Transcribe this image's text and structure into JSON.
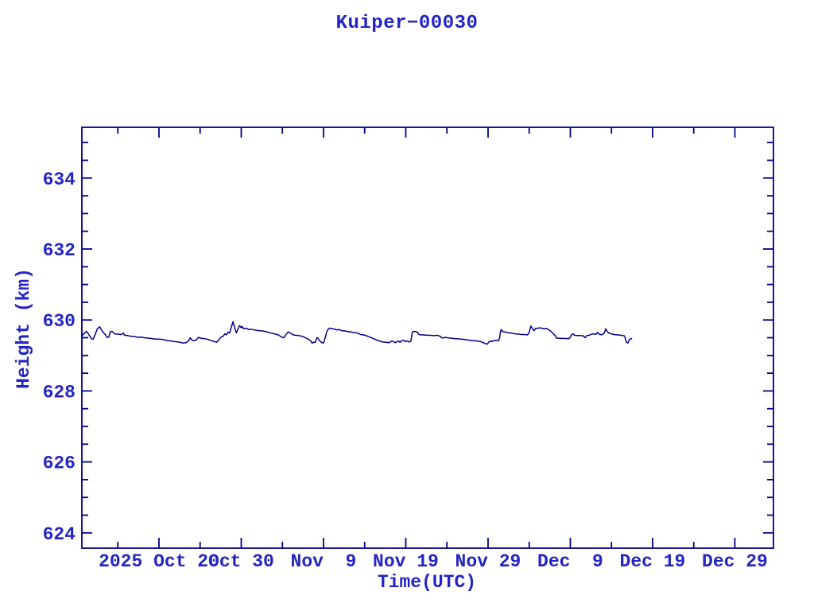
{
  "colors": {
    "background": "#ffffff",
    "axis": "#00008b",
    "line": "#00008b",
    "text": "#2424c4"
  },
  "chart_data": {
    "type": "line",
    "title": "Kuiper−00030",
    "xlabel": "Time(UTC)",
    "ylabel": "Height (km)",
    "grid": false,
    "legend": null,
    "x_axis": {
      "unit": "days relative to 2025 Oct 20 00:00 UTC",
      "range_days": [
        -9.37,
        74.69
      ],
      "major_ticks": [
        {
          "day": 0,
          "label": "2025 Oct 20"
        },
        {
          "day": 10,
          "label": "Oct 30"
        },
        {
          "day": 20,
          "label": "Nov  9"
        },
        {
          "day": 30,
          "label": "Nov 19"
        },
        {
          "day": 40,
          "label": "Nov 29"
        },
        {
          "day": 50,
          "label": "Dec  9"
        },
        {
          "day": 60,
          "label": "Dec 19"
        },
        {
          "day": 70,
          "label": "Dec 29"
        }
      ],
      "minor_tick_days": [
        -5,
        5,
        15,
        25,
        35,
        45,
        55,
        65
      ]
    },
    "y_axis": {
      "unit": "km",
      "range_km": [
        623.57,
        635.43
      ],
      "major_ticks": [
        624,
        626,
        628,
        630,
        632,
        634
      ],
      "minor_step_km": 0.5
    },
    "series": [
      {
        "name": "height_km",
        "points": [
          [
            -9.4,
            629.54
          ],
          [
            -9.1,
            629.62
          ],
          [
            -8.8,
            629.68
          ],
          [
            -8.5,
            629.58
          ],
          [
            -8.2,
            629.47
          ],
          [
            -8.0,
            629.46
          ],
          [
            -7.8,
            629.56
          ],
          [
            -7.5,
            629.75
          ],
          [
            -7.2,
            629.81
          ],
          [
            -7.1,
            629.76
          ],
          [
            -6.8,
            629.66
          ],
          [
            -6.5,
            629.58
          ],
          [
            -6.3,
            629.51
          ],
          [
            -6.1,
            629.52
          ],
          [
            -5.9,
            629.67
          ],
          [
            -5.7,
            629.68
          ],
          [
            -5.4,
            629.61
          ],
          [
            -5.0,
            629.6
          ],
          [
            -4.6,
            629.59
          ],
          [
            -4.3,
            629.63
          ],
          [
            -4.2,
            629.57
          ],
          [
            -3.8,
            629.56
          ],
          [
            -3.4,
            629.54
          ],
          [
            -3.0,
            629.54
          ],
          [
            -2.6,
            629.51
          ],
          [
            -2.2,
            629.52
          ],
          [
            -1.8,
            629.5
          ],
          [
            -1.4,
            629.49
          ],
          [
            -1.0,
            629.48
          ],
          [
            -0.5,
            629.46
          ],
          [
            0.0,
            629.46
          ],
          [
            0.5,
            629.45
          ],
          [
            1.0,
            629.42
          ],
          [
            1.4,
            629.41
          ],
          [
            1.9,
            629.39
          ],
          [
            2.4,
            629.38
          ],
          [
            2.9,
            629.35
          ],
          [
            3.3,
            629.36
          ],
          [
            3.6,
            629.41
          ],
          [
            3.8,
            629.5
          ],
          [
            4.0,
            629.43
          ],
          [
            4.3,
            629.42
          ],
          [
            4.5,
            629.43
          ],
          [
            4.8,
            629.51
          ],
          [
            5.2,
            629.48
          ],
          [
            5.6,
            629.47
          ],
          [
            6.0,
            629.45
          ],
          [
            6.4,
            629.41
          ],
          [
            6.8,
            629.39
          ],
          [
            7.0,
            629.37
          ],
          [
            7.2,
            629.42
          ],
          [
            7.5,
            629.51
          ],
          [
            7.8,
            629.54
          ],
          [
            8.0,
            629.61
          ],
          [
            8.2,
            629.58
          ],
          [
            8.4,
            629.66
          ],
          [
            8.6,
            629.63
          ],
          [
            8.8,
            629.8
          ],
          [
            9.0,
            629.95
          ],
          [
            9.2,
            629.78
          ],
          [
            9.4,
            629.64
          ],
          [
            9.6,
            629.74
          ],
          [
            9.8,
            629.84
          ],
          [
            10.0,
            629.78
          ],
          [
            10.1,
            629.82
          ],
          [
            10.3,
            629.75
          ],
          [
            10.6,
            629.77
          ],
          [
            10.9,
            629.73
          ],
          [
            11.2,
            629.74
          ],
          [
            11.6,
            629.72
          ],
          [
            12.1,
            629.7
          ],
          [
            12.6,
            629.69
          ],
          [
            13.0,
            629.67
          ],
          [
            13.5,
            629.64
          ],
          [
            14.0,
            629.61
          ],
          [
            14.5,
            629.58
          ],
          [
            14.9,
            629.52
          ],
          [
            15.2,
            629.5
          ],
          [
            15.5,
            629.61
          ],
          [
            15.7,
            629.66
          ],
          [
            16.0,
            629.63
          ],
          [
            16.3,
            629.58
          ],
          [
            16.6,
            629.57
          ],
          [
            17.0,
            629.56
          ],
          [
            17.4,
            629.54
          ],
          [
            17.8,
            629.5
          ],
          [
            18.2,
            629.45
          ],
          [
            18.5,
            629.4
          ],
          [
            18.6,
            629.35
          ],
          [
            18.8,
            629.37
          ],
          [
            19.0,
            629.37
          ],
          [
            19.2,
            629.5
          ],
          [
            19.3,
            629.49
          ],
          [
            19.5,
            629.42
          ],
          [
            19.8,
            629.36
          ],
          [
            20.0,
            629.35
          ],
          [
            20.2,
            629.49
          ],
          [
            20.4,
            629.67
          ],
          [
            20.6,
            629.75
          ],
          [
            20.8,
            629.77
          ],
          [
            21.1,
            629.75
          ],
          [
            21.4,
            629.74
          ],
          [
            21.6,
            629.72
          ],
          [
            21.9,
            629.73
          ],
          [
            22.2,
            629.7
          ],
          [
            22.6,
            629.69
          ],
          [
            23.0,
            629.67
          ],
          [
            23.4,
            629.66
          ],
          [
            23.8,
            629.64
          ],
          [
            24.2,
            629.63
          ],
          [
            24.5,
            629.59
          ],
          [
            24.9,
            629.58
          ],
          [
            25.3,
            629.55
          ],
          [
            25.7,
            629.51
          ],
          [
            26.1,
            629.47
          ],
          [
            26.5,
            629.43
          ],
          [
            26.9,
            629.4
          ],
          [
            27.2,
            629.38
          ],
          [
            27.6,
            629.37
          ],
          [
            28.0,
            629.36
          ],
          [
            28.3,
            629.41
          ],
          [
            28.5,
            629.39
          ],
          [
            28.7,
            629.36
          ],
          [
            28.9,
            629.38
          ],
          [
            29.1,
            629.41
          ],
          [
            29.3,
            629.37
          ],
          [
            29.5,
            629.42
          ],
          [
            29.7,
            629.43
          ],
          [
            29.9,
            629.41
          ],
          [
            30.0,
            629.39
          ],
          [
            30.2,
            629.41
          ],
          [
            30.4,
            629.38
          ],
          [
            30.6,
            629.4
          ],
          [
            30.7,
            629.51
          ],
          [
            30.8,
            629.66
          ],
          [
            31.0,
            629.68
          ],
          [
            31.2,
            629.67
          ],
          [
            31.4,
            629.66
          ],
          [
            31.6,
            629.59
          ],
          [
            31.8,
            629.58
          ],
          [
            32.1,
            629.58
          ],
          [
            32.5,
            629.57
          ],
          [
            32.9,
            629.57
          ],
          [
            33.2,
            629.56
          ],
          [
            33.6,
            629.56
          ],
          [
            33.8,
            629.57
          ],
          [
            34.2,
            629.54
          ],
          [
            34.4,
            629.49
          ],
          [
            34.8,
            629.51
          ],
          [
            35.3,
            629.49
          ],
          [
            35.7,
            629.48
          ],
          [
            36.2,
            629.47
          ],
          [
            36.7,
            629.46
          ],
          [
            37.2,
            629.45
          ],
          [
            37.7,
            629.43
          ],
          [
            38.2,
            629.42
          ],
          [
            38.6,
            629.41
          ],
          [
            39.1,
            629.39
          ],
          [
            39.4,
            629.36
          ],
          [
            39.7,
            629.33
          ],
          [
            39.9,
            629.32
          ],
          [
            40.1,
            629.38
          ],
          [
            40.3,
            629.41
          ],
          [
            40.5,
            629.39
          ],
          [
            40.7,
            629.42
          ],
          [
            41.0,
            629.43
          ],
          [
            41.3,
            629.42
          ],
          [
            41.4,
            629.5
          ],
          [
            41.5,
            629.66
          ],
          [
            41.6,
            629.73
          ],
          [
            41.8,
            629.67
          ],
          [
            42.1,
            629.66
          ],
          [
            42.5,
            629.64
          ],
          [
            42.9,
            629.63
          ],
          [
            43.3,
            629.61
          ],
          [
            43.7,
            629.6
          ],
          [
            44.1,
            629.59
          ],
          [
            44.4,
            629.59
          ],
          [
            44.8,
            629.58
          ],
          [
            45.0,
            629.65
          ],
          [
            45.2,
            629.83
          ],
          [
            45.4,
            629.75
          ],
          [
            45.6,
            629.7
          ],
          [
            45.8,
            629.77
          ],
          [
            46.0,
            629.76
          ],
          [
            46.2,
            629.78
          ],
          [
            46.5,
            629.77
          ],
          [
            46.8,
            629.75
          ],
          [
            47.1,
            629.76
          ],
          [
            47.3,
            629.74
          ],
          [
            47.6,
            629.69
          ],
          [
            47.9,
            629.62
          ],
          [
            48.2,
            629.55
          ],
          [
            48.3,
            629.49
          ],
          [
            48.8,
            629.48
          ],
          [
            49.3,
            629.48
          ],
          [
            49.8,
            629.47
          ],
          [
            50.0,
            629.51
          ],
          [
            50.1,
            629.57
          ],
          [
            50.3,
            629.61
          ],
          [
            50.5,
            629.57
          ],
          [
            50.8,
            629.56
          ],
          [
            51.2,
            629.56
          ],
          [
            51.6,
            629.55
          ],
          [
            51.8,
            629.5
          ],
          [
            52.0,
            629.56
          ],
          [
            52.3,
            629.57
          ],
          [
            52.6,
            629.6
          ],
          [
            52.9,
            629.61
          ],
          [
            53.1,
            629.59
          ],
          [
            53.3,
            629.65
          ],
          [
            53.5,
            629.6
          ],
          [
            53.8,
            629.58
          ],
          [
            54.1,
            629.62
          ],
          [
            54.3,
            629.75
          ],
          [
            54.5,
            629.67
          ],
          [
            54.7,
            629.63
          ],
          [
            55.0,
            629.61
          ],
          [
            55.3,
            629.59
          ],
          [
            55.6,
            629.58
          ],
          [
            55.8,
            629.58
          ],
          [
            56.1,
            629.57
          ],
          [
            56.4,
            629.56
          ],
          [
            56.6,
            629.55
          ],
          [
            56.8,
            629.38
          ],
          [
            57.0,
            629.35
          ],
          [
            57.2,
            629.45
          ],
          [
            57.4,
            629.48
          ],
          [
            57.5,
            629.47
          ]
        ]
      }
    ]
  }
}
